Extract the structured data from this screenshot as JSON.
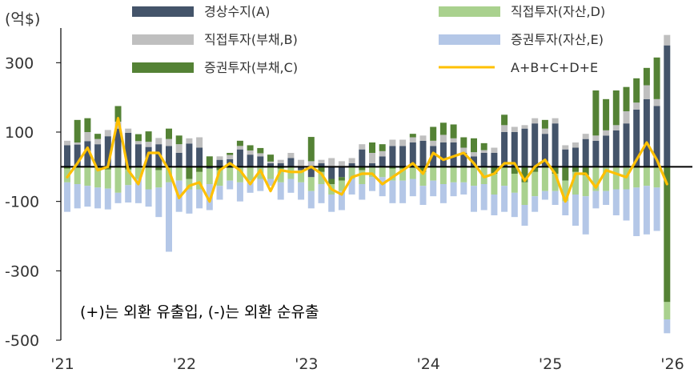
{
  "chart_data": {
    "type": "bar",
    "unit_label": "(억$)",
    "annotation": "(+)는 외환 유출입, (-)는 외환 순유출",
    "y_range": [
      -500,
      400
    ],
    "y_ticks": [
      300,
      100,
      -100,
      -300,
      -500
    ],
    "y_tick_labels": [
      "300",
      "100",
      "-100",
      "-300",
      "-500"
    ],
    "x_tick_labels": [
      "'21",
      "'22",
      "'23",
      "'24",
      "'25",
      "'26"
    ],
    "x_tick_index": [
      0,
      12,
      24,
      36,
      48,
      60
    ],
    "legend": [
      {
        "key": "A",
        "label": "경상수지(A)",
        "color": "#44546a",
        "kind": "bar"
      },
      {
        "key": "D",
        "label": "직접투자(자산,D)",
        "color": "#a9d18e",
        "kind": "bar"
      },
      {
        "key": "B",
        "label": "직접투자(부채,B)",
        "color": "#bfbfbf",
        "kind": "bar"
      },
      {
        "key": "E",
        "label": "증권투자(자산,E)",
        "color": "#b4c7e7",
        "kind": "bar"
      },
      {
        "key": "C",
        "label": "증권투자(부채,C)",
        "color": "#548235",
        "kind": "bar"
      },
      {
        "key": "total",
        "label": "A+B+C+D+E",
        "color": "#ffc000",
        "kind": "line"
      }
    ],
    "series": [
      {
        "key": "A",
        "name": "경상수지(A)",
        "values": [
          62,
          64,
          74,
          65,
          88,
          110,
          98,
          65,
          57,
          65,
          60,
          40,
          67,
          55,
          -5,
          20,
          22,
          50,
          35,
          30,
          10,
          10,
          25,
          -10,
          -30,
          10,
          -35,
          -30,
          10,
          50,
          10,
          30,
          60,
          60,
          70,
          75,
          60,
          70,
          70,
          40,
          30,
          40,
          40,
          100,
          100,
          110,
          125,
          95,
          125,
          50,
          55,
          80,
          75,
          90,
          105,
          125,
          165,
          195,
          175,
          350
        ]
      },
      {
        "key": "B",
        "name": "직접투자(부채,B)",
        "values": [
          13,
          6,
          26,
          15,
          18,
          20,
          12,
          9,
          15,
          18,
          20,
          25,
          15,
          30,
          0,
          10,
          12,
          10,
          12,
          9,
          5,
          10,
          15,
          20,
          16,
          10,
          25,
          16,
          15,
          15,
          30,
          15,
          18,
          18,
          15,
          15,
          15,
          22,
          12,
          15,
          12,
          8,
          15,
          20,
          15,
          10,
          15,
          15,
          15,
          12,
          15,
          15,
          15,
          15,
          15,
          35,
          20,
          40,
          20,
          30
        ]
      },
      {
        "key": "C",
        "name": "증권투자(부채,C)",
        "values": [
          -5,
          65,
          40,
          15,
          -8,
          45,
          -8,
          20,
          30,
          -10,
          30,
          25,
          -35,
          -15,
          30,
          -10,
          6,
          15,
          15,
          15,
          20,
          -5,
          0,
          0,
          70,
          -15,
          -15,
          -10,
          0,
          -10,
          30,
          20,
          -5,
          -5,
          10,
          -15,
          40,
          35,
          40,
          30,
          40,
          20,
          -20,
          30,
          -20,
          -45,
          -15,
          25,
          -20,
          -40,
          -15,
          -25,
          130,
          90,
          100,
          70,
          70,
          50,
          120,
          -390
        ]
      },
      {
        "key": "D",
        "name": "직접투자(자산,D)",
        "values": [
          -40,
          -50,
          -55,
          -60,
          -55,
          -75,
          -45,
          -35,
          -65,
          -50,
          -45,
          -40,
          -30,
          -50,
          -45,
          -45,
          -40,
          -45,
          -40,
          -35,
          -35,
          -40,
          -35,
          -35,
          -40,
          -35,
          -30,
          -30,
          -35,
          -40,
          -30,
          -30,
          -35,
          -35,
          -35,
          -40,
          -40,
          -50,
          -45,
          -45,
          -55,
          -50,
          -60,
          -55,
          -55,
          -65,
          -70,
          -70,
          -50,
          -60,
          -65,
          -60,
          -70,
          -70,
          -65,
          -65,
          -60,
          -55,
          -60,
          -50
        ]
      },
      {
        "key": "E",
        "name": "증권투자(자산,E)",
        "values": [
          -85,
          -70,
          -60,
          -60,
          -60,
          -30,
          -50,
          -70,
          -50,
          -85,
          -200,
          -90,
          -70,
          -55,
          -75,
          -40,
          -25,
          -55,
          -35,
          -35,
          -20,
          -50,
          -40,
          -50,
          -50,
          -55,
          -50,
          -55,
          -45,
          -45,
          -40,
          -55,
          -65,
          -65,
          -50,
          -55,
          -45,
          -55,
          -40,
          -35,
          -75,
          -75,
          -60,
          -75,
          -70,
          -60,
          -45,
          -25,
          -40,
          -40,
          -90,
          -110,
          -50,
          -40,
          -75,
          -90,
          -140,
          -140,
          -125,
          -40
        ]
      },
      {
        "key": "total",
        "name": "A+B+C+D+E",
        "values": [
          -30,
          10,
          55,
          -10,
          0,
          140,
          -10,
          -50,
          40,
          40,
          -10,
          -90,
          -55,
          -45,
          -100,
          -10,
          10,
          -10,
          -50,
          -10,
          -70,
          -10,
          -15,
          -15,
          0,
          -20,
          -65,
          -80,
          -30,
          -20,
          -20,
          -50,
          -30,
          -10,
          10,
          -20,
          40,
          20,
          30,
          40,
          10,
          -30,
          -20,
          10,
          10,
          -40,
          0,
          20,
          -20,
          -100,
          -20,
          -20,
          -60,
          -10,
          -20,
          -30,
          20,
          70,
          20,
          -50
        ]
      }
    ]
  }
}
